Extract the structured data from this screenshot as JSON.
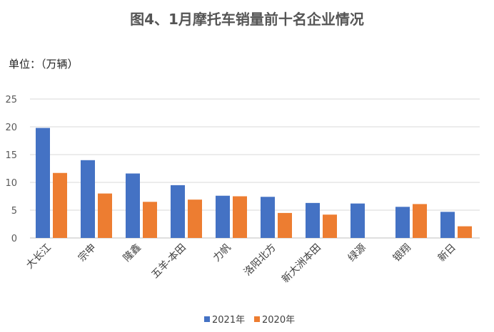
{
  "chart_data": {
    "type": "bar",
    "title": "图4、1月摩托车销量前十名企业情况",
    "unit_label": "单位：（万辆）",
    "categories": [
      "大长江",
      "宗申",
      "隆鑫",
      "五羊-本田",
      "力帆",
      "洛阳北方",
      "新大洲本田",
      "绿源",
      "银翔",
      "新日"
    ],
    "series": [
      {
        "name": "2021年",
        "color": "#4472C4",
        "values": [
          19.8,
          14.0,
          11.6,
          9.5,
          7.6,
          7.4,
          6.3,
          6.2,
          5.6,
          4.7
        ]
      },
      {
        "name": "2020年",
        "color": "#ED7D31",
        "values": [
          11.7,
          8.0,
          6.5,
          6.9,
          7.5,
          4.5,
          4.2,
          0,
          6.1,
          2.1
        ]
      }
    ],
    "ylim": [
      0,
      25
    ],
    "yticks": [
      0,
      5,
      10,
      15,
      20,
      25
    ],
    "grid": true,
    "legend_position": "bottom"
  }
}
